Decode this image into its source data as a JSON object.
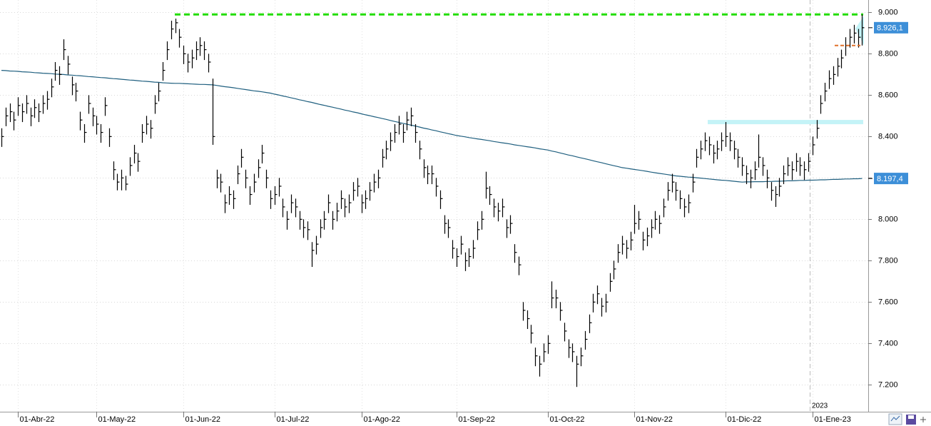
{
  "chart_data": {
    "type": "ohlc",
    "categories": [
      null,
      null,
      null,
      null,
      "01-Abr-22",
      null,
      null,
      null,
      null,
      null,
      null,
      null,
      null,
      null,
      null,
      null,
      null,
      null,
      null,
      null,
      null,
      null,
      null,
      "01-May-22",
      null,
      null,
      null,
      null,
      null,
      null,
      null,
      null,
      null,
      null,
      null,
      null,
      null,
      null,
      null,
      null,
      null,
      null,
      null,
      null,
      "01-Jun-22",
      null,
      null,
      null,
      null,
      null,
      null,
      null,
      null,
      null,
      null,
      null,
      null,
      null,
      null,
      null,
      null,
      null,
      null,
      null,
      null,
      null,
      "01-Jul-22",
      null,
      null,
      null,
      null,
      null,
      null,
      null,
      null,
      null,
      null,
      null,
      null,
      null,
      null,
      null,
      null,
      null,
      null,
      null,
      null,
      "01-Ago-22",
      null,
      null,
      null,
      null,
      null,
      null,
      null,
      null,
      null,
      null,
      null,
      null,
      null,
      null,
      null,
      null,
      null,
      null,
      null,
      null,
      null,
      null,
      "01-Sep-22",
      null,
      null,
      null,
      null,
      null,
      null,
      null,
      null,
      null,
      null,
      null,
      null,
      null,
      null,
      null,
      null,
      null,
      null,
      null,
      null,
      null,
      "01-Oct-22",
      null,
      null,
      null,
      null,
      null,
      null,
      null,
      null,
      null,
      null,
      null,
      null,
      null,
      null,
      null,
      null,
      null,
      null,
      null,
      null,
      "01-Nov-22",
      null,
      null,
      null,
      null,
      null,
      null,
      null,
      null,
      null,
      null,
      null,
      null,
      null,
      null,
      null,
      null,
      null,
      null,
      null,
      null,
      null,
      "01-Dic-22",
      null,
      null,
      null,
      null,
      null,
      null,
      null,
      null,
      null,
      null,
      null,
      null,
      null,
      null,
      null,
      null,
      null,
      null,
      null,
      null,
      "01-Ene-23",
      null,
      null,
      null,
      null,
      null,
      null,
      null,
      null,
      null,
      null,
      null,
      null
    ],
    "year_label": "2023",
    "ohlc": {
      "color": "#000000",
      "close": [
        8400,
        8500,
        8520,
        8480,
        8550,
        8520,
        8560,
        8500,
        8540,
        8520,
        8560,
        8580,
        8640,
        8720,
        8700,
        8820,
        8750,
        8650,
        8620,
        8480,
        8420,
        8560,
        8500,
        8460,
        8420,
        8550,
        8400,
        8240,
        8180,
        8200,
        8170,
        8260,
        8320,
        8280,
        8420,
        8460,
        8440,
        8560,
        8620,
        8720,
        8820,
        8920,
        8950,
        8880,
        8800,
        8760,
        8780,
        8820,
        8840,
        8820,
        8760,
        8400,
        8200,
        8180,
        8080,
        8120,
        8100,
        8220,
        8300,
        8200,
        8120,
        8180,
        8250,
        8320,
        8200,
        8100,
        8120,
        8160,
        8060,
        8000,
        8080,
        8060,
        8000,
        7960,
        7950,
        7850,
        7880,
        7960,
        8000,
        8080,
        8000,
        8040,
        8100,
        8060,
        8080,
        8140,
        8160,
        8080,
        8100,
        8140,
        8180,
        8200,
        8300,
        8340,
        8380,
        8420,
        8460,
        8420,
        8480,
        8500,
        8420,
        8340,
        8250,
        8220,
        8220,
        8160,
        8100,
        7980,
        7960,
        7860,
        7820,
        7880,
        7800,
        7820,
        7860,
        7950,
        8000,
        8150,
        8120,
        8060,
        8040,
        8060,
        7960,
        7980,
        7840,
        7780,
        7560,
        7520,
        7450,
        7340,
        7300,
        7360,
        7400,
        7620,
        7620,
        7560,
        7460,
        7380,
        7360,
        7300,
        7340,
        7420,
        7500,
        7600,
        7640,
        7580,
        7600,
        7700,
        7760,
        7840,
        7880,
        7860,
        7900,
        7980,
        8000,
        7900,
        7920,
        7960,
        8000,
        7980,
        8060,
        8140,
        8180,
        8140,
        8100,
        8060,
        8080,
        8180,
        8300,
        8340,
        8380,
        8360,
        8320,
        8340,
        8380,
        8400,
        8380,
        8340,
        8300,
        8260,
        8220,
        8200,
        8240,
        8300,
        8260,
        8200,
        8140,
        8120,
        8160,
        8220,
        8260,
        8240,
        8280,
        8260,
        8240,
        8280,
        8360,
        8440,
        8560,
        8620,
        8680,
        8700,
        8740,
        8780,
        8840,
        8880,
        8900,
        8880,
        8926.1
      ],
      "high": [
        8440,
        8540,
        8560,
        8520,
        8590,
        8560,
        8600,
        8540,
        8580,
        8560,
        8600,
        8620,
        8680,
        8760,
        8740,
        8870,
        8790,
        8690,
        8660,
        8520,
        8460,
        8600,
        8540,
        8500,
        8460,
        8590,
        8440,
        8280,
        8220,
        8240,
        8210,
        8300,
        8360,
        8320,
        8460,
        8500,
        8480,
        8600,
        8660,
        8760,
        8860,
        8960,
        8970,
        8920,
        8840,
        8800,
        8820,
        8860,
        8880,
        8860,
        8800,
        8680,
        8240,
        8220,
        8120,
        8160,
        8140,
        8260,
        8340,
        8240,
        8160,
        8220,
        8290,
        8360,
        8240,
        8140,
        8160,
        8200,
        8100,
        8040,
        8120,
        8100,
        8040,
        8000,
        7990,
        7890,
        7920,
        8000,
        8040,
        8120,
        8040,
        8080,
        8140,
        8100,
        8120,
        8180,
        8200,
        8120,
        8140,
        8180,
        8220,
        8240,
        8340,
        8380,
        8420,
        8460,
        8500,
        8460,
        8520,
        8540,
        8460,
        8380,
        8290,
        8260,
        8260,
        8200,
        8140,
        8020,
        8000,
        7900,
        7860,
        7920,
        7840,
        7860,
        7900,
        7990,
        8040,
        8230,
        8160,
        8100,
        8080,
        8100,
        8000,
        8020,
        7880,
        7820,
        7600,
        7560,
        7490,
        7380,
        7340,
        7400,
        7440,
        7700,
        7660,
        7600,
        7500,
        7420,
        7400,
        7340,
        7380,
        7460,
        7540,
        7640,
        7680,
        7620,
        7640,
        7740,
        7800,
        7880,
        7920,
        7900,
        7940,
        8070,
        8040,
        7940,
        7960,
        8000,
        8040,
        8020,
        8100,
        8180,
        8220,
        8180,
        8140,
        8100,
        8120,
        8220,
        8340,
        8380,
        8420,
        8400,
        8360,
        8380,
        8420,
        8470,
        8420,
        8380,
        8340,
        8300,
        8260,
        8240,
        8280,
        8410,
        8300,
        8240,
        8180,
        8160,
        8200,
        8260,
        8300,
        8280,
        8320,
        8300,
        8280,
        8320,
        8400,
        8480,
        8600,
        8660,
        8720,
        8740,
        8780,
        8820,
        8880,
        8920,
        8940,
        8920,
        8990
      ],
      "low": [
        8350,
        8450,
        8470,
        8430,
        8500,
        8470,
        8510,
        8450,
        8490,
        8470,
        8510,
        8530,
        8590,
        8670,
        8650,
        8770,
        8700,
        8600,
        8570,
        8430,
        8370,
        8510,
        8450,
        8410,
        8370,
        8500,
        8350,
        8190,
        8140,
        8140,
        8140,
        8210,
        8270,
        8230,
        8370,
        8410,
        8390,
        8510,
        8570,
        8670,
        8770,
        8870,
        8900,
        8830,
        8750,
        8710,
        8730,
        8770,
        8790,
        8770,
        8710,
        8360,
        8150,
        8130,
        8030,
        8070,
        8050,
        8170,
        8250,
        8150,
        8070,
        8130,
        8200,
        8270,
        8150,
        8050,
        8070,
        8110,
        8010,
        7950,
        8030,
        8010,
        7950,
        7910,
        7900,
        7770,
        7830,
        7910,
        7950,
        8030,
        7950,
        7990,
        8050,
        8010,
        8030,
        8090,
        8110,
        8030,
        8050,
        8090,
        8130,
        8150,
        8250,
        8290,
        8330,
        8370,
        8410,
        8370,
        8430,
        8450,
        8370,
        8290,
        8200,
        8170,
        8170,
        8110,
        8050,
        7930,
        7910,
        7810,
        7770,
        7830,
        7750,
        7770,
        7810,
        7900,
        7950,
        8100,
        8070,
        8010,
        7990,
        8010,
        7910,
        7930,
        7790,
        7730,
        7510,
        7470,
        7400,
        7290,
        7240,
        7310,
        7350,
        7570,
        7570,
        7510,
        7410,
        7330,
        7310,
        7190,
        7290,
        7370,
        7450,
        7550,
        7590,
        7530,
        7550,
        7650,
        7710,
        7790,
        7830,
        7810,
        7850,
        7930,
        7950,
        7850,
        7870,
        7910,
        7950,
        7930,
        8010,
        8090,
        8130,
        8090,
        8050,
        8010,
        8030,
        8130,
        8250,
        8290,
        8330,
        8310,
        8270,
        8290,
        8330,
        8350,
        8330,
        8290,
        8250,
        8210,
        8170,
        8150,
        8190,
        8250,
        8210,
        8150,
        8090,
        8060,
        8110,
        8170,
        8210,
        8190,
        8230,
        8210,
        8190,
        8230,
        8310,
        8390,
        8510,
        8570,
        8630,
        8650,
        8690,
        8730,
        8790,
        8830,
        8850,
        8830,
        8840
      ],
      "close_label": "8.926,1"
    },
    "ma": {
      "color": "#1f5f7f",
      "values": [
        8720,
        8719,
        8717,
        8716,
        8715,
        8713,
        8712,
        8711,
        8709,
        8708,
        8706,
        8705,
        8704,
        8702,
        8701,
        8700,
        8698,
        8697,
        8695,
        8694,
        8692,
        8690,
        8689,
        8687,
        8685,
        8684,
        8682,
        8680,
        8679,
        8677,
        8675,
        8673,
        8672,
        8670,
        8668,
        8667,
        8665,
        8663,
        8662,
        8660,
        8659,
        8658,
        8657,
        8657,
        8656,
        8655,
        8654,
        8653,
        8652,
        8652,
        8651,
        8650,
        8647,
        8644,
        8641,
        8639,
        8636,
        8633,
        8630,
        8627,
        8624,
        8621,
        8619,
        8616,
        8613,
        8610,
        8605,
        8601,
        8596,
        8592,
        8587,
        8583,
        8578,
        8574,
        8569,
        8565,
        8560,
        8555,
        8551,
        8546,
        8542,
        8537,
        8533,
        8528,
        8524,
        8519,
        8515,
        8510,
        8505,
        8501,
        8496,
        8492,
        8487,
        8483,
        8478,
        8473,
        8469,
        8464,
        8460,
        8455,
        8451,
        8446,
        8441,
        8437,
        8432,
        8428,
        8423,
        8419,
        8414,
        8410,
        8405,
        8402,
        8399,
        8395,
        8392,
        8389,
        8386,
        8383,
        8380,
        8376,
        8373,
        8370,
        8367,
        8364,
        8360,
        8357,
        8354,
        8351,
        8348,
        8345,
        8341,
        8338,
        8335,
        8330,
        8326,
        8321,
        8316,
        8311,
        8307,
        8302,
        8297,
        8293,
        8288,
        8283,
        8278,
        8274,
        8269,
        8264,
        8259,
        8255,
        8250,
        8247,
        8244,
        8241,
        8238,
        8235,
        8232,
        8228,
        8225,
        8222,
        8219,
        8216,
        8213,
        8210,
        8208,
        8206,
        8204,
        8203,
        8201,
        8199,
        8197,
        8195,
        8193,
        8191,
        8189,
        8188,
        8186,
        8184,
        8182,
        8180,
        8181,
        8181,
        8182,
        8182,
        8182,
        8183,
        8183,
        8184,
        8184,
        8185,
        8186,
        8186,
        8187,
        8188,
        8188,
        8189,
        8189,
        8190,
        8191,
        8191,
        8192,
        8193,
        8193,
        8194,
        8195,
        8195,
        8196,
        8196,
        8197.4
      ],
      "last_label": "8.197,4"
    },
    "levels": [
      {
        "value": 8990,
        "color": "#22dd00"
      },
      {
        "value": 8470,
        "color": "#c4f3f7"
      },
      {
        "value": 8840,
        "color": "#e0702a"
      }
    ],
    "ylim": [
      7070,
      9060
    ],
    "yticks": [
      {
        "value": 9000,
        "label": "9.000"
      },
      {
        "value": 8800,
        "label": "8.800"
      },
      {
        "value": 8600,
        "label": "8.600"
      },
      {
        "value": 8400,
        "label": "8.400"
      },
      {
        "value": 8200,
        "label": "8.200"
      },
      {
        "value": 8000,
        "label": "8.000"
      },
      {
        "value": 7800,
        "label": "7.800"
      },
      {
        "value": 7600,
        "label": "7.600"
      },
      {
        "value": 7400,
        "label": "7.400"
      },
      {
        "value": 7200,
        "label": "7.200"
      }
    ],
    "grid": true
  }
}
